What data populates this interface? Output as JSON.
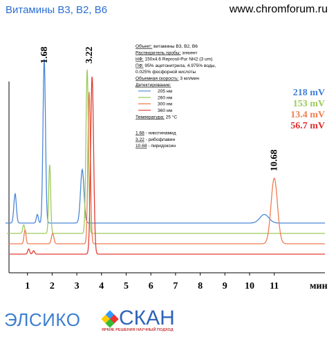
{
  "header": {
    "title": "Витамины В3, В2, В6",
    "site": "www.chromforum.ru"
  },
  "conditions": [
    {
      "u": "Объект:",
      "t": " витамины В3, В2, В6"
    },
    {
      "u": "Растворитель пробы:",
      "t": " элюент"
    },
    {
      "u": "НФ:",
      "t": " 150x4.6 Reprosil-Pur NH2  (3 um)"
    },
    {
      "u": "ПФ:",
      "t": " 95% ацетонитрила, 4.975% воды,"
    },
    {
      "u": "",
      "t": "0.025% фосфорной кислоты"
    },
    {
      "u": "Объемная скорость:",
      "t": " 3 мл/мин"
    },
    {
      "u": "Детектирование:",
      "t": ""
    }
  ],
  "temperature": {
    "u": "Температура:",
    "t": " 25 °C"
  },
  "peaks_legend": [
    {
      "rt": "1.68",
      "name": " - никотинамид"
    },
    {
      "rt": "3.22",
      "name": " - рибофлавин"
    },
    {
      "rt": "10.68",
      "name": " - пиридоксин"
    }
  ],
  "chart_data": {
    "type": "line",
    "xlabel": "мин",
    "xlim": [
      0,
      12
    ],
    "x_ticks": [
      1,
      2,
      3,
      4,
      5,
      6,
      7,
      8,
      9,
      10,
      11
    ],
    "grid": false,
    "legend_position": "top-center",
    "peak_labels": [
      {
        "text": "1.68",
        "x": 1.68
      },
      {
        "text": "3.22",
        "x": 3.5
      },
      {
        "text": "10.68",
        "x": 11.0
      }
    ],
    "scale_labels": [
      {
        "text": "218 mV",
        "color": "#3f7fd6"
      },
      {
        "text": "153 mV",
        "color": "#9acb5a"
      },
      {
        "text": "13.4 mV",
        "color": "#f08050"
      },
      {
        "text": "56.7 mV",
        "color": "#e03030"
      }
    ],
    "series": [
      {
        "name": "205 нм",
        "color": "#4a86d8",
        "baseline": 0.0,
        "peaks": [
          [
            0.5,
            0.17,
            0.05
          ],
          [
            1.4,
            0.05,
            0.04
          ],
          [
            1.68,
            0.95,
            0.05
          ],
          [
            3.22,
            0.31,
            0.07
          ],
          [
            10.6,
            0.05,
            0.18
          ]
        ]
      },
      {
        "name": "260 нм",
        "color": "#9ccb5b",
        "baseline": -0.06,
        "peaks": [
          [
            0.85,
            0.05,
            0.04
          ],
          [
            1.9,
            0.4,
            0.04
          ],
          [
            3.42,
            0.95,
            0.05
          ]
        ]
      },
      {
        "name": "300 нм",
        "color": "#ef7b52",
        "baseline": -0.12,
        "peaks": [
          [
            0.9,
            0.08,
            0.04
          ],
          [
            2.02,
            0.06,
            0.05
          ],
          [
            3.5,
            0.88,
            0.05
          ],
          [
            11.0,
            0.38,
            0.13
          ]
        ]
      },
      {
        "name": "360 нм",
        "color": "#e23a32",
        "baseline": -0.18,
        "peaks": [
          [
            1.05,
            0.03,
            0.04
          ],
          [
            1.25,
            0.02,
            0.04
          ],
          [
            3.62,
            1.03,
            0.06
          ]
        ]
      }
    ]
  },
  "logo": {
    "left": "ЭЛСИКО",
    "right": "СКАН",
    "tagline": "ЯРКИЕ РЕШЕНИЯ   НАУЧНЫЙ ПОДХОД"
  }
}
